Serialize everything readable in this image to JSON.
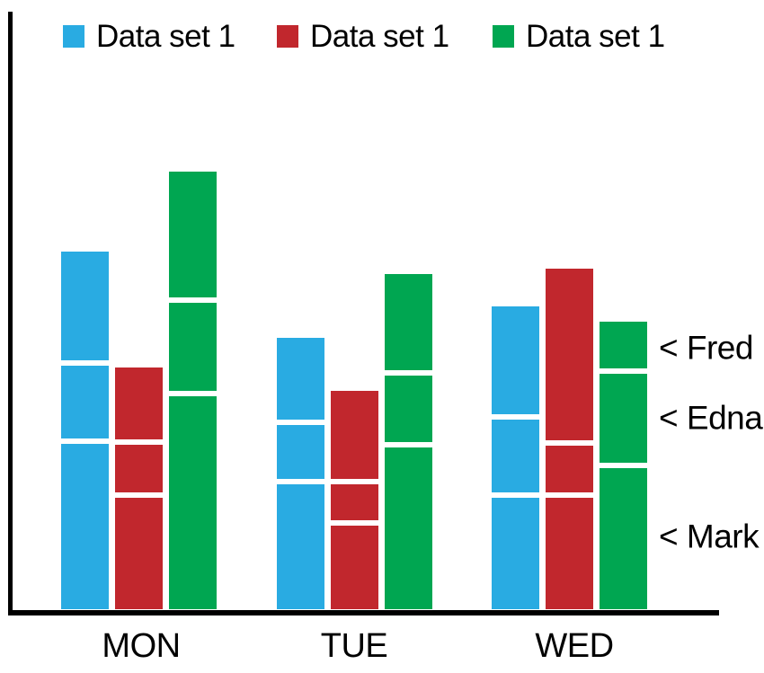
{
  "legend": {
    "items": [
      {
        "label": "Data set 1",
        "color": "#29abe2"
      },
      {
        "label": "Data set 1",
        "color": "#c1272d"
      },
      {
        "label": "Data set 1",
        "color": "#00a651"
      }
    ]
  },
  "chart_data": {
    "type": "bar",
    "variant": "grouped bars, one per series, each bar stacked in 3 segments separated by white gaps",
    "categories": [
      "MON",
      "TUE",
      "WED"
    ],
    "stack_segment_labels_bottom_to_top": [
      "Mark",
      "Edna",
      "Fred"
    ],
    "value_unit": "pixel height (chart shows no numeric axis)",
    "series": [
      {
        "name": "Data set 1",
        "color": "#29abe2",
        "values_by_category": [
          [
            184,
            81,
            121
          ],
          [
            139,
            60,
            91
          ],
          [
            124,
            81,
            120
          ]
        ]
      },
      {
        "name": "Data set 1",
        "color": "#c1272d",
        "values_by_category": [
          [
            124,
            53,
            80
          ],
          [
            93,
            40,
            98
          ],
          [
            124,
            52,
            191
          ]
        ]
      },
      {
        "name": "Data set 1",
        "color": "#00a651",
        "values_by_category": [
          [
            237,
            98,
            140
          ],
          [
            180,
            74,
            107
          ],
          [
            157,
            99,
            52
          ]
        ]
      }
    ],
    "annotations": [
      {
        "text": "< Fred",
        "points_to": "top segment of WED green bar"
      },
      {
        "text": "< Edna",
        "points_to": "middle segment of WED green bar"
      },
      {
        "text": "< Mark",
        "points_to": "bottom segment of WED green bar"
      }
    ],
    "axes": {
      "x_ticks": [
        "MON",
        "TUE",
        "WED"
      ],
      "y_ticks": [],
      "gridlines": false,
      "legend_position": "top"
    }
  }
}
